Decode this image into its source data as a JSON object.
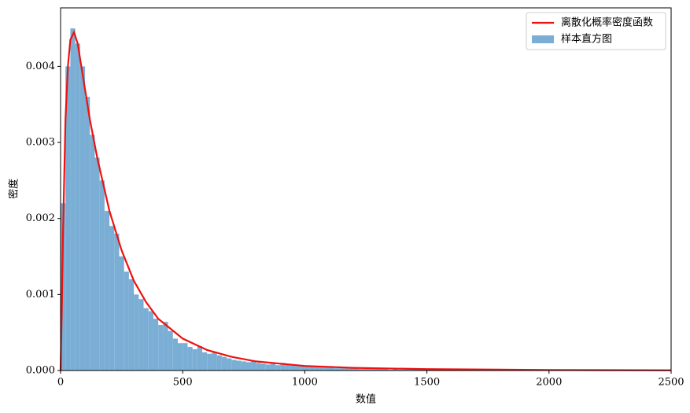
{
  "chart_data": [
    {
      "type": "histogram",
      "name": "样本直方图",
      "color": "#7aaed4",
      "xlabel": "数值",
      "ylabel": "密度",
      "xlim": [
        0,
        2500
      ],
      "ylim": [
        0,
        0.00477
      ],
      "xticks": [
        0,
        500,
        1000,
        1500,
        2000,
        2500
      ],
      "yticks": [
        {
          "value": 0,
          "label": "0.000"
        },
        {
          "value": 0.001,
          "label": "0.001"
        },
        {
          "value": 0.002,
          "label": "0.002"
        },
        {
          "value": 0.003,
          "label": "0.003"
        },
        {
          "value": 0.004,
          "label": "0.004"
        }
      ],
      "legend": "upper right",
      "bins": [
        0,
        20,
        40,
        60,
        80,
        100,
        120,
        140,
        160,
        180,
        200,
        220,
        240,
        260,
        280,
        300,
        320,
        340,
        360,
        380,
        400,
        420,
        440,
        460,
        480,
        500,
        520,
        540,
        560,
        580,
        600,
        620,
        640,
        660,
        680,
        700,
        720,
        740,
        760,
        780,
        800,
        820,
        840,
        860,
        880,
        900,
        920,
        940,
        960,
        980,
        1000,
        1020,
        1040,
        1060,
        1080,
        1100,
        1120,
        1140,
        1160,
        1180,
        1200,
        1220,
        1240,
        1260,
        1280,
        1300,
        1320,
        1340,
        1360,
        1380,
        1400,
        1420,
        1440,
        1460,
        1480,
        1500,
        1520,
        1540,
        1560,
        1580,
        1600
      ],
      "values": [
        0.0022,
        0.004,
        0.0045,
        0.0043,
        0.004,
        0.0036,
        0.0031,
        0.0028,
        0.0025,
        0.0021,
        0.0019,
        0.0018,
        0.0015,
        0.0013,
        0.0012,
        0.001,
        0.00094,
        0.00082,
        0.00078,
        0.00068,
        0.0006,
        0.00064,
        0.00052,
        0.00042,
        0.00036,
        0.00036,
        0.00031,
        0.00028,
        0.00032,
        0.00024,
        0.00022,
        0.00024,
        0.0002,
        0.00018,
        0.00016,
        0.00014,
        0.00013,
        0.00012,
        0.00011,
        0.00013,
        0.0001,
        9e-05,
        8e-05,
        9e-05,
        7e-05,
        0.0001,
        8e-05,
        7e-05,
        6e-05,
        6e-05,
        6e-05,
        5e-05,
        5e-05,
        4e-05,
        4e-05,
        4e-05,
        3e-05,
        3e-05,
        3e-05,
        3e-05,
        3e-05,
        2e-05,
        2e-05,
        2e-05,
        2e-05,
        2e-05,
        2e-05,
        1e-05,
        2e-05,
        1e-05,
        1e-05,
        1e-05,
        1e-05,
        1e-05,
        1e-05,
        1e-05,
        1e-05,
        1e-05,
        1e-05,
        1e-05
      ]
    },
    {
      "type": "line",
      "name": "离散化概率密度函数",
      "color": "#ee1111",
      "x": [
        0,
        5,
        10,
        20,
        30,
        40,
        55,
        70,
        80,
        100,
        120,
        150,
        200,
        250,
        300,
        350,
        400,
        500,
        600,
        700,
        800,
        1000,
        1200,
        1500,
        2000,
        2500
      ],
      "values": [
        0,
        0.0008,
        0.0018,
        0.0033,
        0.004,
        0.00435,
        0.00445,
        0.0043,
        0.0041,
        0.0037,
        0.0033,
        0.0028,
        0.0021,
        0.00158,
        0.00118,
        0.0009,
        0.00068,
        0.00042,
        0.00027,
        0.00018,
        0.00012,
        6e-05,
        3.5e-05,
        1.8e-05,
        7e-06,
        3e-06
      ]
    }
  ]
}
